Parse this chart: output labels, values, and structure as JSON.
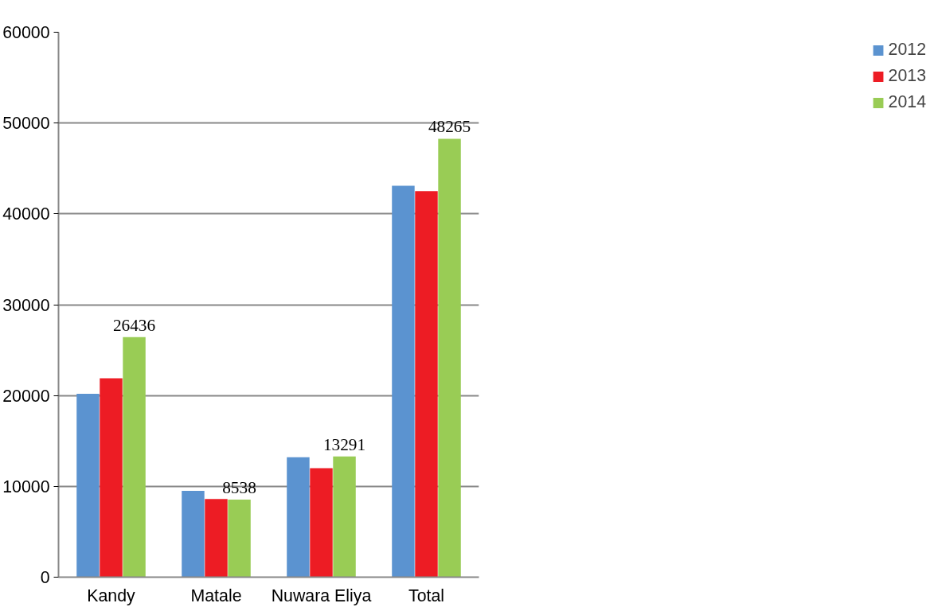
{
  "chart_data": {
    "type": "bar",
    "categories": [
      "Kandy",
      "Matale",
      "Nuwara Eliya",
      "Total"
    ],
    "series": [
      {
        "name": "2012",
        "color": "#5b93d0",
        "values": [
          20200,
          9500,
          13200,
          43100
        ]
      },
      {
        "name": "2013",
        "color": "#ed1c24",
        "values": [
          21900,
          8600,
          12000,
          42500
        ]
      },
      {
        "name": "2014",
        "color": "#99cc55",
        "values": [
          26436,
          8538,
          13291,
          48265
        ],
        "value_labels": [
          "26436",
          "8538",
          "13291",
          "48265"
        ]
      }
    ],
    "ylim": [
      0,
      60000
    ],
    "yticks": [
      0,
      10000,
      20000,
      30000,
      40000,
      50000,
      60000
    ],
    "grid": "y",
    "legend": "right"
  }
}
